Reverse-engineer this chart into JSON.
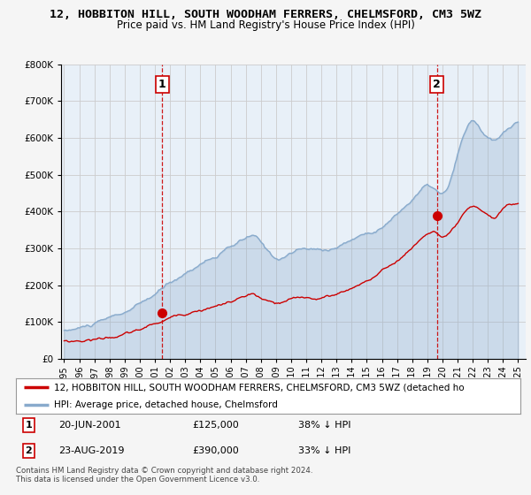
{
  "title": "12, HOBBITON HILL, SOUTH WOODHAM FERRERS, CHELMSFORD, CM3 5WZ",
  "subtitle": "Price paid vs. HM Land Registry's House Price Index (HPI)",
  "legend_label_red": "12, HOBBITON HILL, SOUTH WOODHAM FERRERS, CHELMSFORD, CM3 5WZ (detached ho",
  "legend_label_blue": "HPI: Average price, detached house, Chelmsford",
  "annotation1_label": "1",
  "annotation1_date": "20-JUN-2001",
  "annotation1_price": "£125,000",
  "annotation1_hpi": "38% ↓ HPI",
  "annotation2_label": "2",
  "annotation2_date": "23-AUG-2019",
  "annotation2_price": "£390,000",
  "annotation2_hpi": "33% ↓ HPI",
  "footnote": "Contains HM Land Registry data © Crown copyright and database right 2024.\nThis data is licensed under the Open Government Licence v3.0.",
  "red_color": "#cc0000",
  "blue_color": "#88aacc",
  "blue_fill": "#ddeeff",
  "vline_color": "#cc0000",
  "background_color": "#f5f5f5",
  "plot_bg_color": "#e8f0f8",
  "grid_color": "#cccccc",
  "ylim": [
    0,
    800000
  ],
  "yticks": [
    0,
    100000,
    200000,
    300000,
    400000,
    500000,
    600000,
    700000,
    800000
  ],
  "vline1_x": 2001.47,
  "vline2_x": 2019.64,
  "point1_x": 2001.47,
  "point1_y": 125000,
  "point2_x": 2019.64,
  "point2_y": 390000,
  "xlim_left": 1994.8,
  "xlim_right": 2025.5
}
